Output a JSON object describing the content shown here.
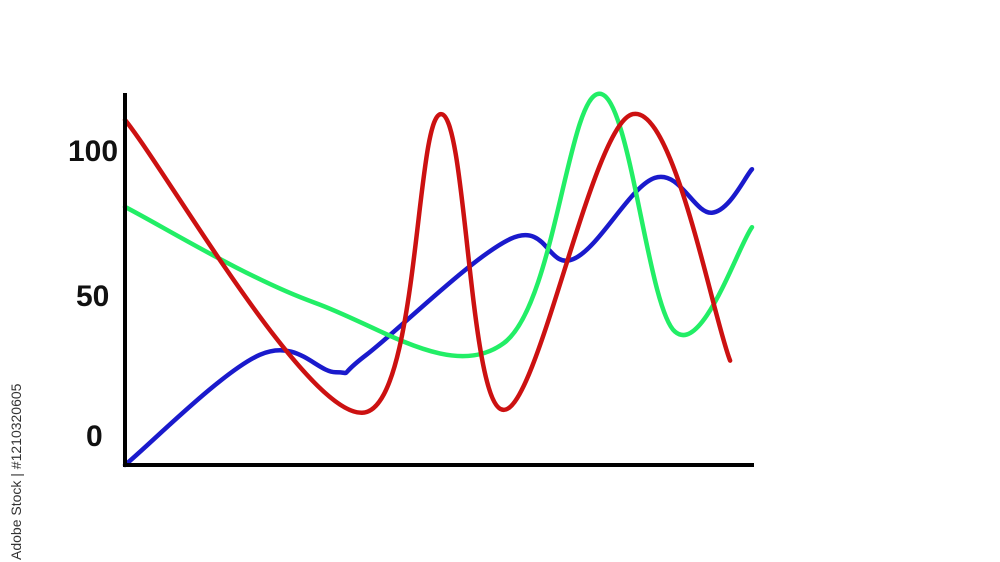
{
  "side_caption": "Adobe Stock | #1210320605",
  "chart_data": {
    "type": "line",
    "title": "",
    "xlabel": "",
    "ylabel": "",
    "ylim": [
      0,
      130
    ],
    "yticks": [
      0,
      50,
      100
    ],
    "grid": false,
    "legend": "none",
    "series": [
      {
        "color": "#1a1acc",
        "points": [
          [
            0,
            0
          ],
          [
            21.5,
            38
          ],
          [
            33.6,
            32
          ],
          [
            38.5,
            38
          ],
          [
            61.5,
            78
          ],
          [
            71.5,
            71
          ],
          [
            84.5,
            99
          ],
          [
            93.6,
            87
          ],
          [
            100,
            102
          ]
        ]
      },
      {
        "color": "#22ee66",
        "points": [
          [
            0,
            89
          ],
          [
            30.2,
            56
          ],
          [
            60.4,
            42
          ],
          [
            75.6,
            128
          ],
          [
            87.7,
            46
          ],
          [
            100,
            82
          ]
        ]
      },
      {
        "color": "#cc1111",
        "points": [
          [
            0,
            119
          ],
          [
            37.8,
            18
          ],
          [
            50.4,
            121
          ],
          [
            60.4,
            19
          ],
          [
            81,
            121
          ],
          [
            96.5,
            36
          ]
        ]
      }
    ]
  }
}
